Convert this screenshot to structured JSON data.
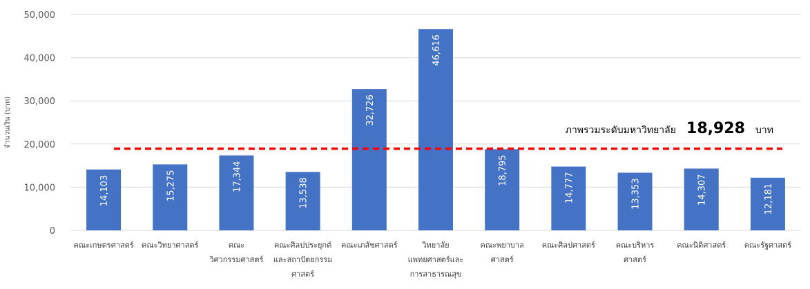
{
  "chart_data": {
    "type": "bar",
    "ylabel": "จำนวนเงิน (บาท)",
    "ylim": [
      0,
      50000
    ],
    "yticks": [
      "0",
      "10,000",
      "20,000",
      "30,000",
      "40,000",
      "50,000"
    ],
    "grid": true,
    "bar_color": "#4472C4",
    "categories": [
      [
        "คณะเกษตรศาสตร์"
      ],
      [
        "คณะวิทยาศาสตร์"
      ],
      [
        "คณะ",
        "วิศวกรรมศาสตร์"
      ],
      [
        "คณะศิลปประยุกต์",
        "และสถาปัตยกรรม",
        "ศาสตร์"
      ],
      [
        "คณะเภสัชศาสตร์"
      ],
      [
        "วิทยาลัย",
        "แพทยศาสตร์และ",
        "การสาธารณสุข"
      ],
      [
        "คณะพยาบาล",
        "ศาสตร์"
      ],
      [
        "คณะศิลปศาสตร์"
      ],
      [
        "คณะบริหาร",
        "ศาสตร์"
      ],
      [
        "คณะนิติศาสตร์"
      ],
      [
        "คณะรัฐศาสตร์"
      ]
    ],
    "values": [
      14103,
      15275,
      17344,
      13538,
      32726,
      46616,
      18795,
      14777,
      13353,
      14307,
      12181
    ],
    "value_labels": [
      "14,103",
      "15,275",
      "17,344",
      "13,538",
      "32,726",
      "46,616",
      "18,795",
      "14,777",
      "13,353",
      "14,307",
      "12,181"
    ],
    "reference_line": {
      "value": 18928,
      "color": "#FF0000",
      "style": "dashed",
      "text": "ภาพรวมระดับมหาวิทยาลัย",
      "value_label": "18,928",
      "unit": "บาท"
    }
  }
}
